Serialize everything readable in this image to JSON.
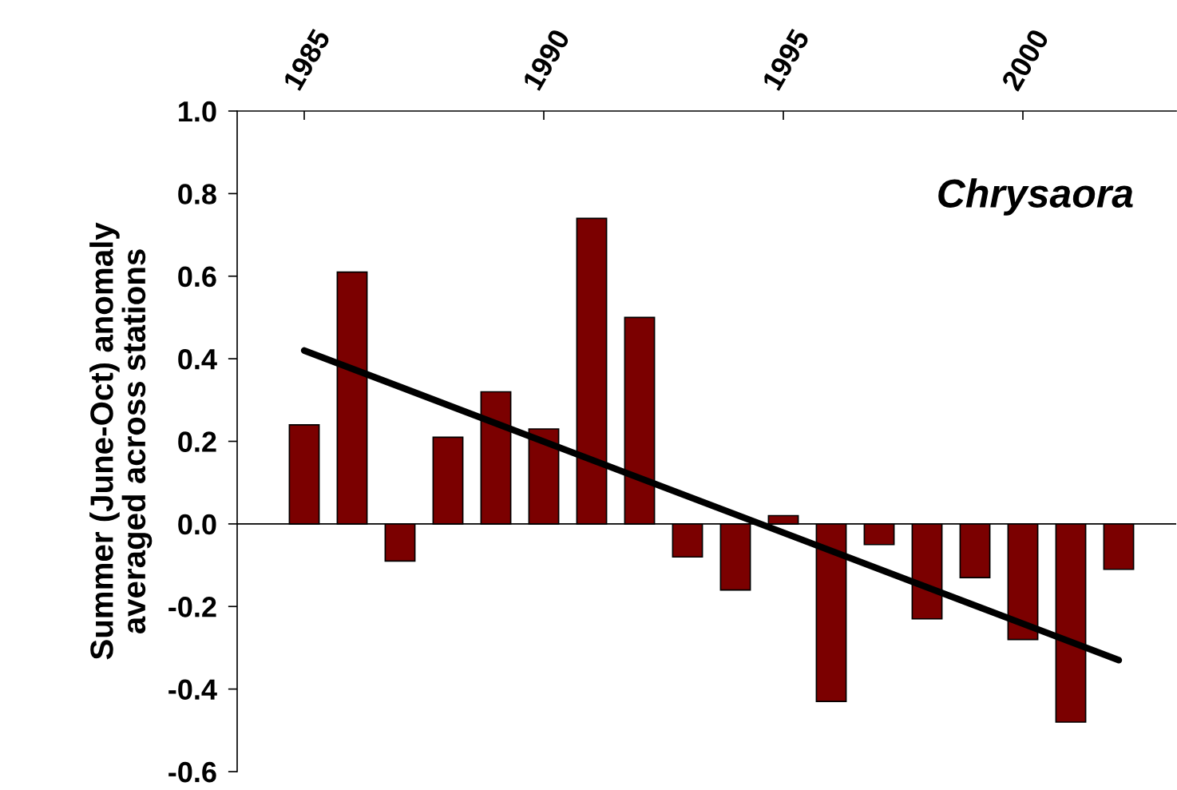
{
  "chart_data": {
    "type": "bar",
    "ylabel": "Summer (June-Oct) anomaly\naveraged across stations",
    "x": [
      1985,
      1986,
      1987,
      1988,
      1989,
      1990,
      1991,
      1992,
      1993,
      1994,
      1995,
      1996,
      1997,
      1998,
      1999,
      2000,
      2001,
      2002
    ],
    "series": [
      {
        "color": "#7b0000",
        "values": [
          0.24,
          0.61,
          -0.09,
          0.21,
          0.32,
          0.23,
          0.74,
          0.5,
          -0.08,
          -0.16,
          0.02,
          -0.43,
          -0.05,
          -0.23,
          -0.13,
          -0.28,
          -0.48,
          -0.11
        ]
      },
      {
        "type": "line",
        "color": "#000000",
        "x": [
          1985,
          2002
        ],
        "values": [
          0.42,
          -0.33
        ]
      }
    ],
    "xlim": [
      1983.6,
      2003.2
    ],
    "xticks": [
      1985,
      1990,
      1995,
      2000
    ],
    "ylim": [
      -0.6,
      1.0
    ],
    "yticks": [
      {
        "value": -0.6,
        "label": "-0.6"
      },
      {
        "value": -0.4,
        "label": "-0.4"
      },
      {
        "value": -0.2,
        "label": "-0.2"
      },
      {
        "value": 0.0,
        "label": "0.0"
      },
      {
        "value": 0.2,
        "label": "0.2"
      },
      {
        "value": 0.4,
        "label": "0.4"
      },
      {
        "value": 0.6,
        "label": "0.6"
      },
      {
        "value": 0.8,
        "label": "0.8"
      },
      {
        "value": 1.0,
        "label": "1.0"
      }
    ],
    "ref_lines": [
      {
        "axis": "y",
        "value": 0,
        "color": "#000000"
      }
    ],
    "annotations": [
      "Chrysaora"
    ],
    "grid": false
  }
}
